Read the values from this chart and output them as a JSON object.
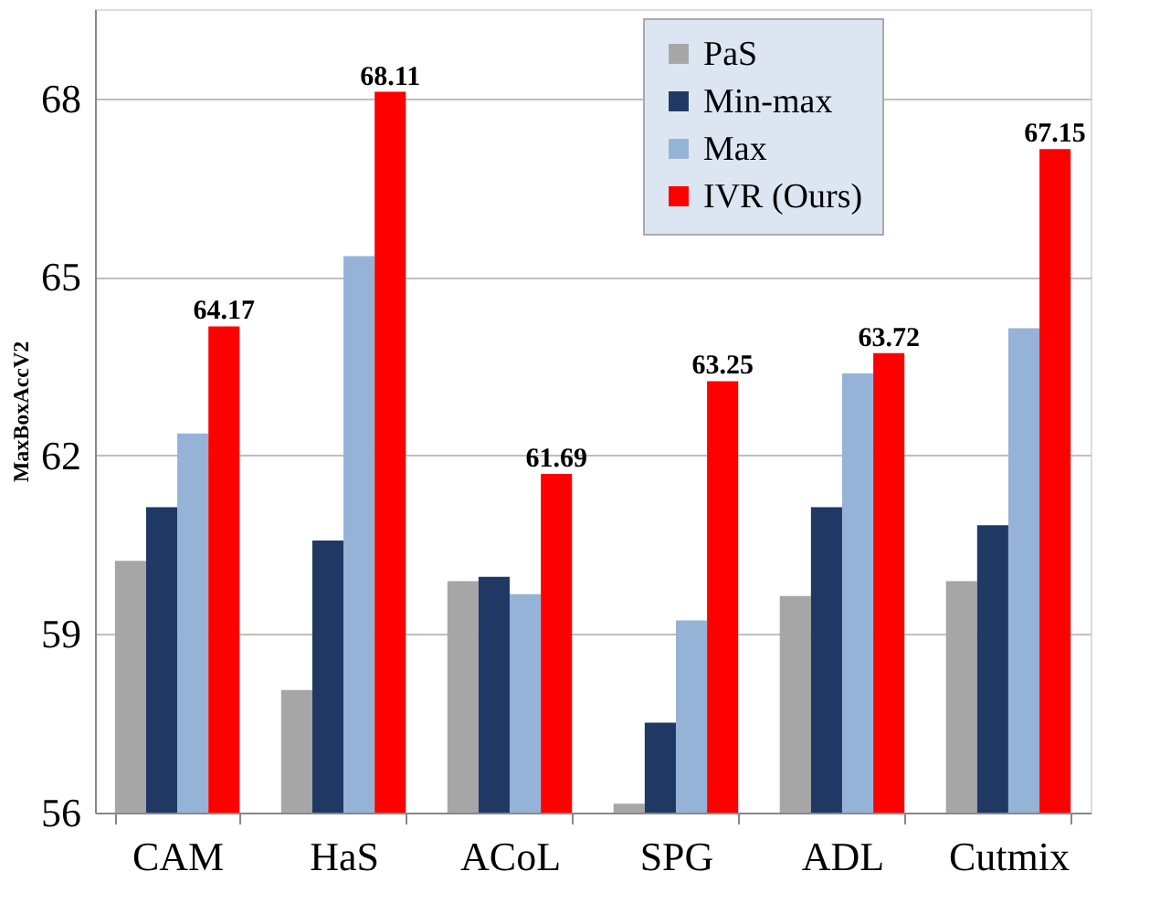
{
  "chart_data": {
    "type": "bar",
    "ylabel": "MaxBoxAccV2",
    "categories": [
      "CAM",
      "HaS",
      "ACoL",
      "SPG",
      "ADL",
      "Cutmix"
    ],
    "series": [
      {
        "name": "PaS",
        "color": "#a6a6a6",
        "values": [
          60.23,
          58.06,
          59.89,
          56.15,
          59.64,
          59.89
        ]
      },
      {
        "name": "Min-max",
        "color": "#1f3864",
        "values": [
          61.13,
          60.57,
          59.96,
          57.51,
          61.13,
          60.83
        ]
      },
      {
        "name": "Max",
        "color": "#95b3d7",
        "values": [
          62.37,
          65.35,
          59.67,
          59.23,
          63.38,
          64.14
        ]
      },
      {
        "name": "IVR (Ours)",
        "color": "#ff0000",
        "values": [
          64.17,
          68.11,
          61.69,
          63.25,
          63.72,
          67.15
        ],
        "value_labels": [
          "64.17",
          "68.11",
          "61.69",
          "63.25",
          "63.72",
          "67.15"
        ]
      }
    ],
    "ylim": [
      56,
      69.5
    ],
    "yticks": [
      56,
      59,
      62,
      65,
      68
    ],
    "grid": "y",
    "legend": "top right"
  }
}
